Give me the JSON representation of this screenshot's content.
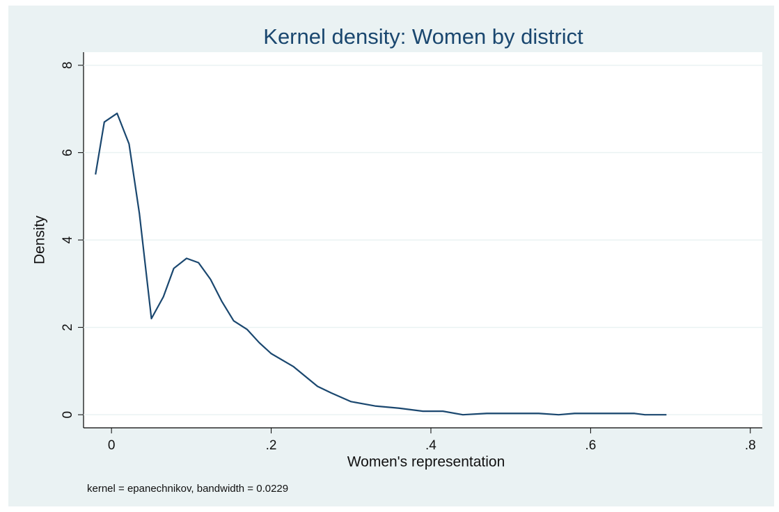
{
  "chart_data": {
    "type": "line",
    "title": "Kernel density: Women by district",
    "x_label": "Women's representation",
    "y_label": "Density",
    "note": "kernel = epanechnikov, bandwidth = 0.0229",
    "x": [
      -0.02,
      -0.009,
      0.007,
      0.022,
      0.035,
      0.05,
      0.065,
      0.078,
      0.094,
      0.109,
      0.124,
      0.138,
      0.153,
      0.17,
      0.185,
      0.2,
      0.228,
      0.258,
      0.275,
      0.3,
      0.33,
      0.36,
      0.39,
      0.415,
      0.44,
      0.47,
      0.535,
      0.56,
      0.58,
      0.655,
      0.668,
      0.695
    ],
    "series": [
      {
        "color": "#1a476f",
        "values": [
          5.5,
          6.7,
          6.9,
          6.2,
          4.6,
          2.2,
          2.7,
          3.35,
          3.58,
          3.48,
          3.1,
          2.6,
          2.15,
          1.95,
          1.65,
          1.4,
          1.1,
          0.65,
          0.5,
          0.3,
          0.2,
          0.15,
          0.08,
          0.08,
          0,
          0.03,
          0.03,
          0,
          0.03,
          0.03,
          0,
          0
        ]
      }
    ],
    "xlim": [
      -0.035,
      0.815
    ],
    "ylim": [
      -0.3,
      8.3
    ],
    "xticks": [
      0,
      {
        "value": 0.2,
        "label": ".2"
      },
      {
        "value": 0.4,
        "label": ".4"
      },
      {
        "value": 0.6,
        "label": ".6"
      },
      {
        "value": 0.8,
        "label": ".8"
      }
    ],
    "yticks": [
      0,
      2,
      4,
      6,
      8
    ],
    "grid": true
  }
}
